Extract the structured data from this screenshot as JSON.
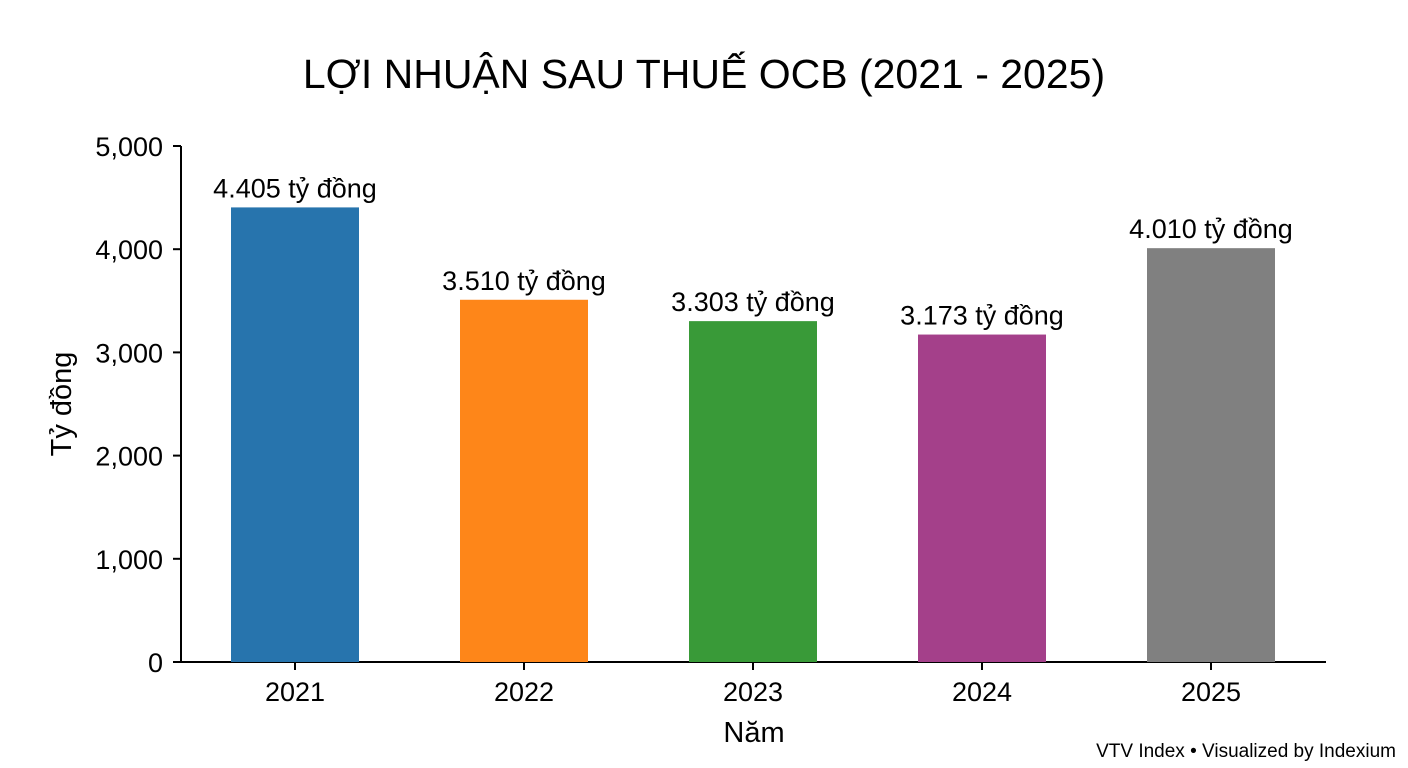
{
  "chart_data": {
    "type": "bar",
    "title": "LỢI NHUẬN SAU THUẾ OCB (2021 - 2025)",
    "xlabel": "Năm",
    "ylabel": "Tỷ đồng",
    "categories": [
      "2021",
      "2022",
      "2023",
      "2024",
      "2025"
    ],
    "values": [
      4405,
      3510,
      3303,
      3173,
      4010
    ],
    "data_labels": [
      "4.405 tỷ đồng",
      "3.510 tỷ đồng",
      "3.303 tỷ đồng",
      "3.173 tỷ đồng",
      "4.010 tỷ đồng"
    ],
    "bar_colors": [
      "#2774ad",
      "#fe8619",
      "#399a38",
      "#a4408a",
      "#808080"
    ],
    "ylim": [
      0,
      5000
    ],
    "y_ticks": [
      0,
      1000,
      2000,
      3000,
      4000,
      5000
    ],
    "y_tick_labels": [
      "0",
      "1,000",
      "2,000",
      "3,000",
      "4,000",
      "5,000"
    ],
    "grid": false,
    "legend": "none",
    "source": "VTV Index • Visualized by Indexium"
  }
}
